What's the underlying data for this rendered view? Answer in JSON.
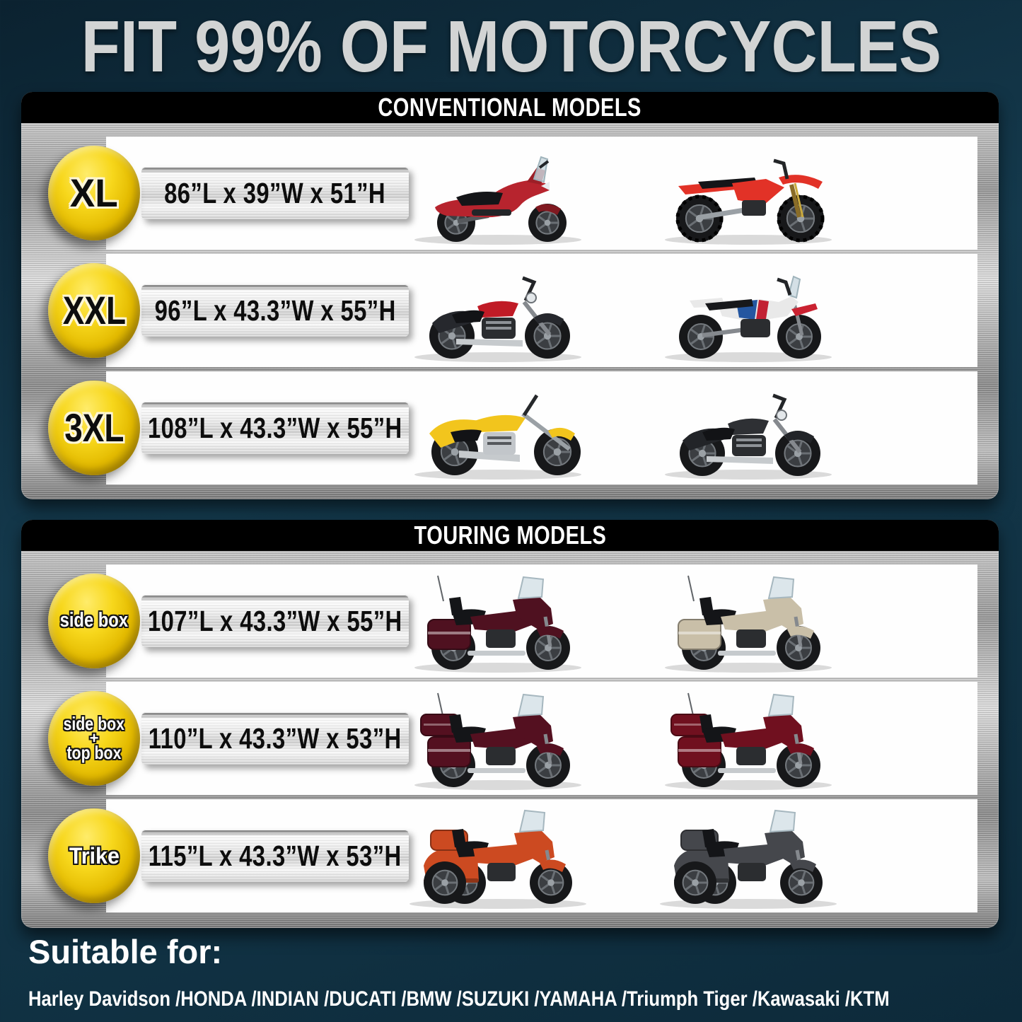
{
  "page": {
    "title": "FIT 99% OF MOTORCYCLES",
    "background_color": "#0d2a3a",
    "badge_yellow": "#f2cf0f",
    "panel_metal_gray": "#b5b5b5",
    "header_bar_color": "#000000"
  },
  "sections": [
    {
      "header": "CONVENTIONAL MODELS",
      "rows": [
        {
          "badge_lines": [
            "XL"
          ],
          "badge_style": "dark",
          "dimensions": "86”L x 39”W x 51”H",
          "bikes": [
            {
              "name": "red-adv-scooter",
              "type": "scooter",
              "color": "#b7242e"
            },
            {
              "name": "red-dirt-bike",
              "type": "dirt",
              "color": "#e23227"
            }
          ]
        },
        {
          "badge_lines": [
            "XXL"
          ],
          "badge_style": "dark",
          "dimensions": "96”L x 43.3”W x 55”H",
          "bikes": [
            {
              "name": "black-red-cruiser",
              "type": "cruiser",
              "color": "#26282d",
              "accent2": "#c01b26"
            },
            {
              "name": "white-adventure-tourer",
              "type": "adventure",
              "color": "#e9e9e9",
              "accent2": "#2456a0"
            }
          ]
        },
        {
          "badge_lines": [
            "3XL"
          ],
          "badge_style": "dark",
          "dimensions": "108”L x 43.3”W x 55”H",
          "bikes": [
            {
              "name": "yellow-chopper",
              "type": "chopper",
              "color": "#f2c51d"
            },
            {
              "name": "black-cruiser",
              "type": "cruiser",
              "color": "#222428",
              "accent2": "#2e3034"
            }
          ]
        }
      ]
    },
    {
      "header": "TOURING MODELS",
      "rows": [
        {
          "badge_lines": [
            "side box"
          ],
          "badge_style": "light",
          "dimensions": "107”L x 43.3”W x 55”H",
          "bikes": [
            {
              "name": "maroon-touring-sidebox",
              "type": "touring",
              "color": "#4f1120"
            },
            {
              "name": "tan-touring-bagger",
              "type": "touring",
              "color": "#c9bfa8"
            }
          ]
        },
        {
          "badge_lines": [
            "side box",
            "+",
            "top box"
          ],
          "badge_style": "light",
          "dimensions": "110”L x 43.3”W x 53”H",
          "bikes": [
            {
              "name": "maroon-full-dress-touring",
              "type": "touringFull",
              "color": "#541020"
            },
            {
              "name": "dark-red-goldwing-touring",
              "type": "touringFull",
              "color": "#70101f"
            }
          ]
        },
        {
          "badge_lines": [
            "Trike"
          ],
          "badge_style": "light",
          "dimensions": "115”L x 43.3”W x 53”H",
          "bikes": [
            {
              "name": "orange-goldwing-trike",
              "type": "trike",
              "color": "#cc4a21"
            },
            {
              "name": "gray-harley-trike",
              "type": "trike",
              "color": "#45474c"
            }
          ]
        }
      ]
    }
  ],
  "footer": {
    "suitable_label": "Suitable for:",
    "brands": "Harley Davidson /HONDA /INDIAN /DUCATI /BMW /SUZUKI /YAMAHA /Triumph Tiger /Kawasaki /KTM"
  }
}
